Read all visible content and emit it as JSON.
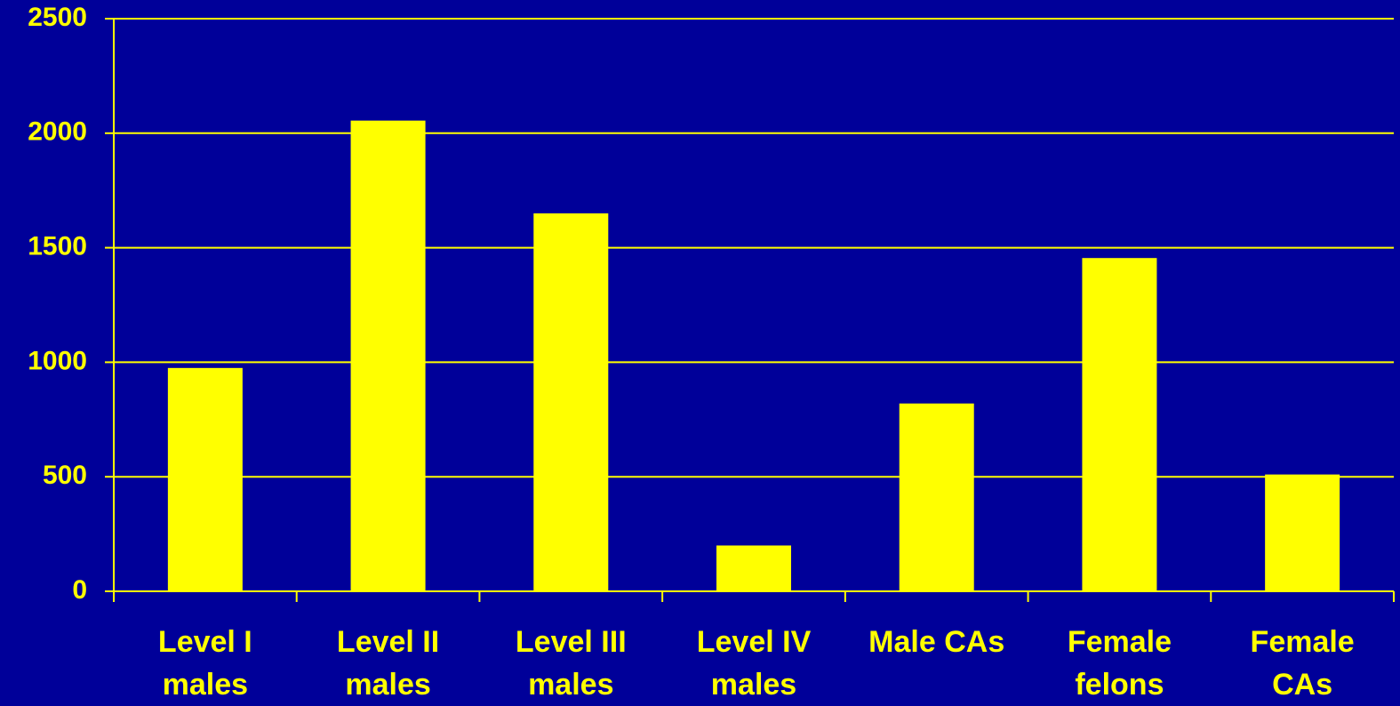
{
  "chart_data": {
    "type": "bar",
    "categories": [
      "Level I\nmales",
      "Level II\nmales",
      "Level III\nmales",
      "Level IV\nmales",
      "Male CAs",
      "Female\nfelons",
      "Female\nCAs"
    ],
    "values": [
      975,
      2055,
      1650,
      200,
      820,
      1455,
      510
    ],
    "color": "#ffff00",
    "ylim": [
      0,
      2500
    ],
    "yticks": [
      0,
      500,
      1000,
      1500,
      2000,
      2500
    ],
    "grid": true
  }
}
